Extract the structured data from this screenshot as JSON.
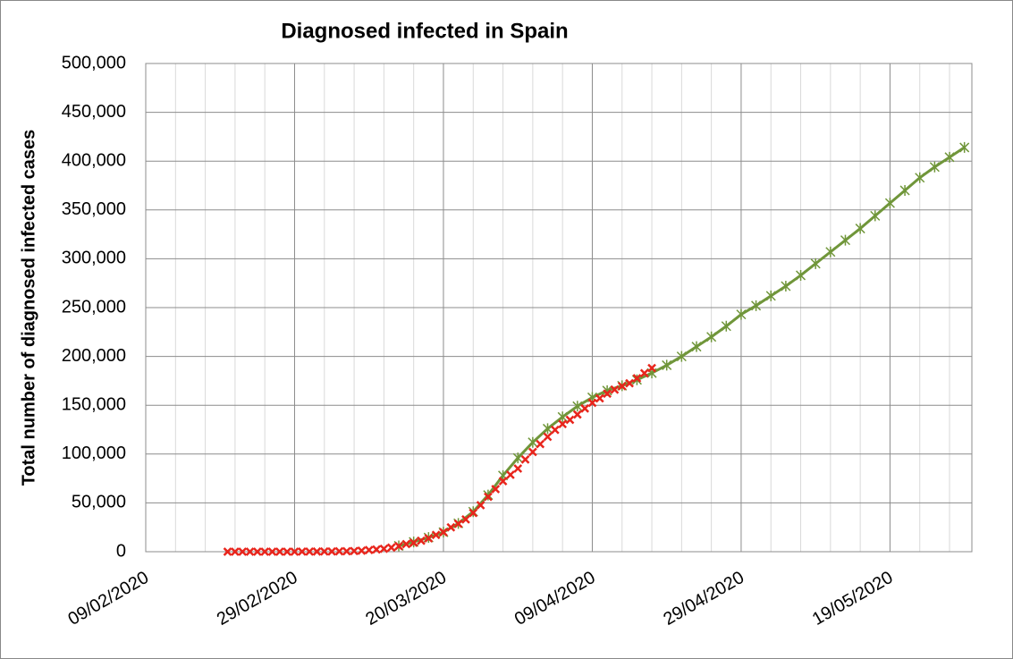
{
  "chart_data": {
    "type": "line",
    "title": "Diagnosed infected in Spain",
    "y_label": "Total number of diagnosed infected cases",
    "xlim": [
      "09/02/2020",
      "30/05/2020"
    ],
    "xticks": [
      "09/02/2020",
      "29/02/2020",
      "20/03/2020",
      "09/04/2020",
      "29/04/2020",
      "19/05/2020"
    ],
    "ylim": [
      0,
      500000
    ],
    "yticks": [
      0,
      {
        "value": 50000,
        "label": "50,000"
      },
      {
        "value": 100000,
        "label": "100,000"
      },
      {
        "value": 150000,
        "label": "150,000"
      },
      {
        "value": 200000,
        "label": "200,000"
      },
      {
        "value": 250000,
        "label": "250,000"
      },
      {
        "value": 300000,
        "label": "300,000"
      },
      {
        "value": 350000,
        "label": "350,000"
      },
      {
        "value": 400000,
        "label": "400,000"
      },
      {
        "value": 450000,
        "label": "450,000"
      },
      {
        "value": 500000,
        "label": "500,000"
      }
    ],
    "grid": true,
    "series": [
      {
        "color": "#70963a",
        "line": true,
        "marker": "cross",
        "x": [
          "14/03/2020",
          "16/03/2020",
          "18/03/2020",
          "20/03/2020",
          "22/03/2020",
          "24/03/2020",
          "26/03/2020",
          "28/03/2020",
          "30/03/2020",
          "01/04/2020",
          "03/04/2020",
          "05/04/2020",
          "07/04/2020",
          "09/04/2020",
          "11/04/2020",
          "13/04/2020",
          "15/04/2020",
          "17/04/2020",
          "19/04/2020",
          "21/04/2020",
          "23/04/2020",
          "25/04/2020",
          "27/04/2020",
          "29/04/2020",
          "01/05/2020",
          "03/05/2020",
          "05/05/2020",
          "07/05/2020",
          "09/05/2020",
          "11/05/2020",
          "13/05/2020",
          "15/05/2020",
          "17/05/2020",
          "19/05/2020",
          "21/05/2020",
          "23/05/2020",
          "25/05/2020",
          "27/05/2020",
          "29/05/2020"
        ],
        "values": [
          6000,
          10000,
          14500,
          20000,
          29000,
          41000,
          58000,
          78000,
          96000,
          112000,
          126000,
          138000,
          149000,
          158000,
          165000,
          170000,
          176000,
          183000,
          191000,
          200000,
          210000,
          220000,
          231000,
          243000,
          252000,
          262000,
          272000,
          283000,
          295000,
          307000,
          319000,
          331000,
          344000,
          357000,
          370000,
          383000,
          394000,
          404000,
          414000
        ]
      },
      {
        "color": "#e8251c",
        "line": false,
        "marker": "x",
        "x": [
          "20/02/2020",
          "21/02/2020",
          "22/02/2020",
          "23/02/2020",
          "24/02/2020",
          "25/02/2020",
          "26/02/2020",
          "27/02/2020",
          "28/02/2020",
          "29/02/2020",
          "01/03/2020",
          "02/03/2020",
          "03/03/2020",
          "04/03/2020",
          "05/03/2020",
          "06/03/2020",
          "07/03/2020",
          "08/03/2020",
          "09/03/2020",
          "10/03/2020",
          "11/03/2020",
          "12/03/2020",
          "13/03/2020",
          "14/03/2020",
          "15/03/2020",
          "16/03/2020",
          "17/03/2020",
          "18/03/2020",
          "19/03/2020",
          "20/03/2020",
          "21/03/2020",
          "22/03/2020",
          "23/03/2020",
          "24/03/2020",
          "25/03/2020",
          "26/03/2020",
          "27/03/2020",
          "28/03/2020",
          "29/03/2020",
          "30/03/2020",
          "31/03/2020",
          "01/04/2020",
          "02/04/2020",
          "03/04/2020",
          "04/04/2020",
          "05/04/2020",
          "06/04/2020",
          "07/04/2020",
          "08/04/2020",
          "09/04/2020",
          "10/04/2020",
          "11/04/2020",
          "12/04/2020",
          "13/04/2020",
          "14/04/2020",
          "15/04/2020",
          "16/04/2020",
          "17/04/2020"
        ],
        "values": [
          2,
          2,
          2,
          2,
          2,
          6,
          13,
          15,
          32,
          45,
          84,
          120,
          165,
          222,
          259,
          400,
          500,
          673,
          1073,
          1695,
          2277,
          2950,
          4209,
          5753,
          7753,
          9191,
          11178,
          13716,
          17147,
          19980,
          24926,
          28572,
          33089,
          39673,
          47610,
          56188,
          64059,
          72248,
          78797,
          85195,
          94417,
          102136,
          110238,
          117710,
          124736,
          130759,
          135032,
          140510,
          146690,
          152446,
          157022,
          161852,
          166019,
          169496,
          172541,
          177633,
          182816,
          188068
        ]
      }
    ]
  }
}
